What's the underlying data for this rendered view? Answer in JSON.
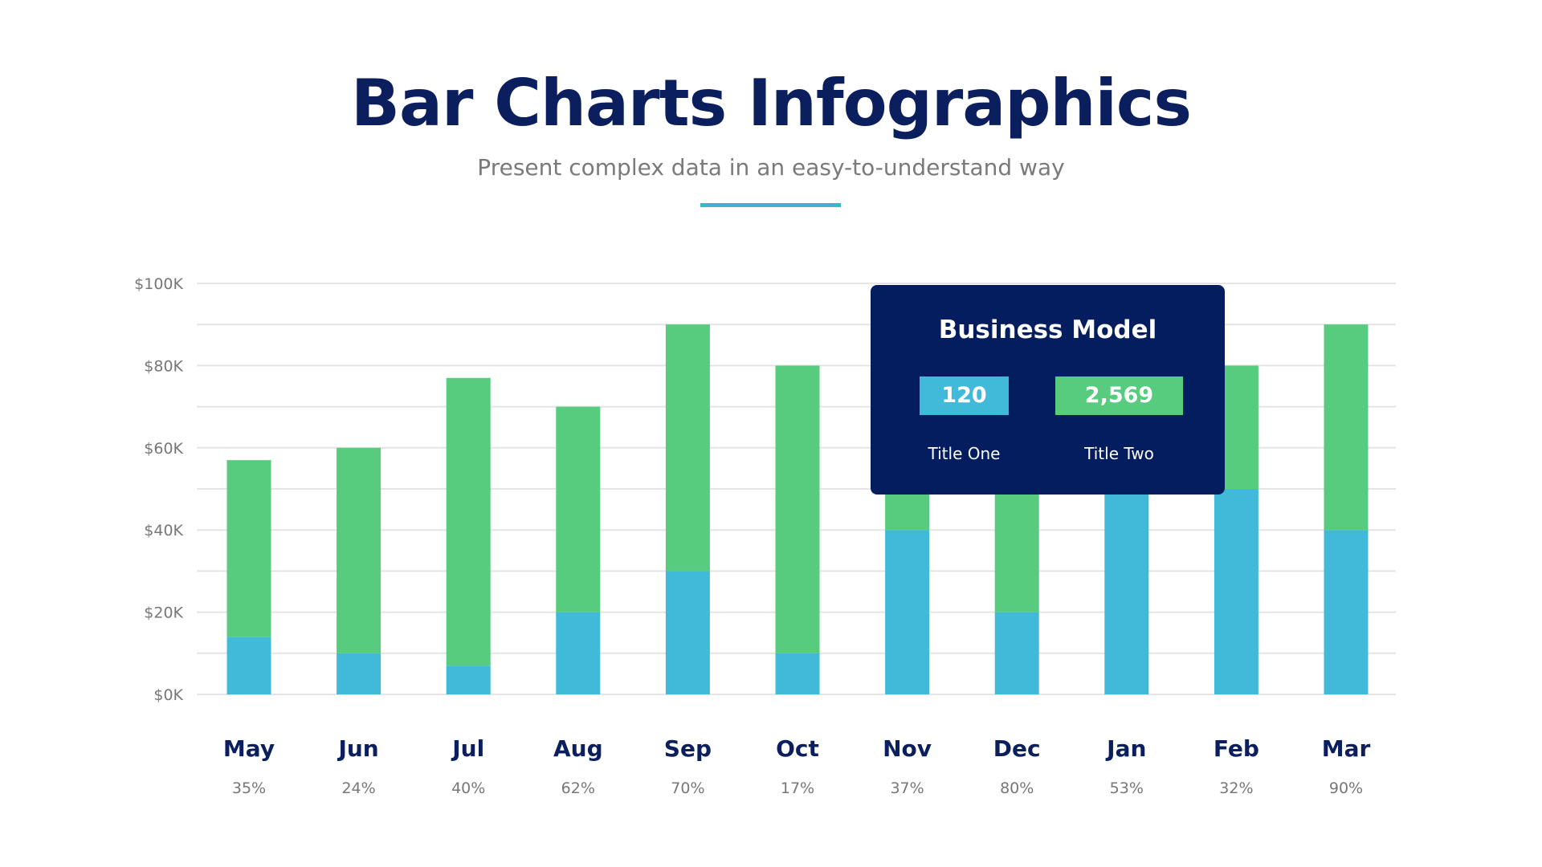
{
  "header": {
    "title": "Bar Charts Infographics",
    "subtitle": "Present complex data in an easy-to-understand way"
  },
  "colors": {
    "title": "#0b1f5e",
    "accent": "#3db4cc",
    "series_bottom": "#41bad9",
    "series_top": "#58cc7e",
    "box": "#031d5f"
  },
  "chart_data": {
    "type": "bar",
    "stacked": true,
    "categories": [
      "May",
      "Jun",
      "Jul",
      "Aug",
      "Sep",
      "Oct",
      "Nov",
      "Dec",
      "Jan",
      "Feb",
      "Mar"
    ],
    "percent_labels": [
      "35%",
      "24%",
      "40%",
      "62%",
      "70%",
      "17%",
      "37%",
      "80%",
      "53%",
      "32%",
      "90%"
    ],
    "series": [
      {
        "values": [
          14,
          10,
          7,
          20,
          30,
          10,
          40,
          20,
          55,
          50,
          40
        ],
        "color": "#41bad9"
      },
      {
        "values": [
          43,
          50,
          70,
          50,
          60,
          70,
          30,
          55,
          30,
          30,
          50
        ],
        "color": "#58cc7e"
      }
    ],
    "ylim": [
      0,
      100
    ],
    "yticks": [
      0,
      20,
      40,
      60,
      80,
      100
    ],
    "ytick_labels": [
      "$0K",
      "$20K",
      "$40K",
      "$60K",
      "$80K",
      "$100K"
    ],
    "grid": true,
    "grid_step": 10
  },
  "callout": {
    "title": "Business Model",
    "value_one": "120",
    "label_one": "Title One",
    "value_two": "2,569",
    "label_two": "Title Two"
  }
}
